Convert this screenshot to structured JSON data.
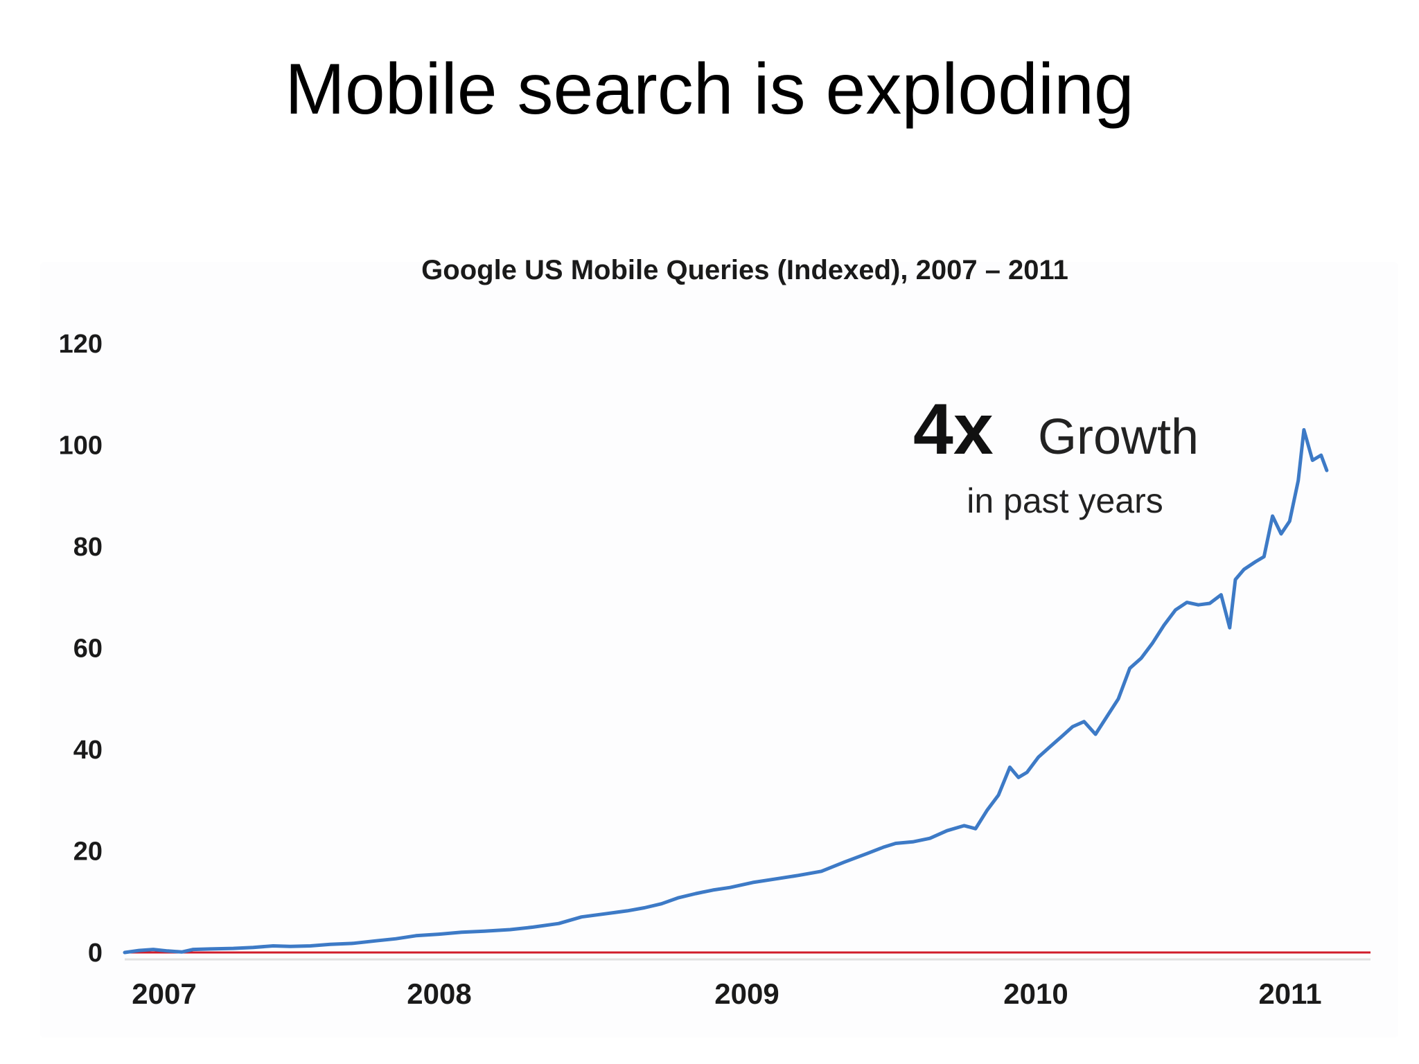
{
  "slide": {
    "title": "Mobile search is exploding"
  },
  "chart_data": {
    "type": "line",
    "title": "Google US Mobile Queries (Indexed), 2007 – 2011",
    "xlabel": "",
    "ylabel": "",
    "ylim": [
      0,
      120
    ],
    "xlim": [
      2006.9,
      2011.2
    ],
    "y_ticks": [
      "0",
      "20",
      "40",
      "60",
      "80",
      "100",
      "120"
    ],
    "x_ticks": [
      {
        "label": "2007",
        "value": 2007.0
      },
      {
        "label": "2008",
        "value": 2008.0
      },
      {
        "label": "2009",
        "value": 2009.0
      },
      {
        "label": "2010",
        "value": 2010.0
      },
      {
        "label": "2011",
        "value": 2011.0
      }
    ],
    "grid": false,
    "baseline_color": "#d01c2a",
    "series": [
      {
        "color": "#3d7ac6",
        "points": [
          [
            2006.9,
            0.0
          ],
          [
            2006.95,
            0.4
          ],
          [
            2007.0,
            0.6
          ],
          [
            2007.05,
            0.3
          ],
          [
            2007.1,
            0.1
          ],
          [
            2007.14,
            0.6
          ],
          [
            2007.2,
            0.7
          ],
          [
            2007.28,
            0.8
          ],
          [
            2007.35,
            1.0
          ],
          [
            2007.42,
            1.3
          ],
          [
            2007.48,
            1.2
          ],
          [
            2007.55,
            1.3
          ],
          [
            2007.62,
            1.6
          ],
          [
            2007.7,
            1.8
          ],
          [
            2007.78,
            2.3
          ],
          [
            2007.85,
            2.7
          ],
          [
            2007.92,
            3.3
          ],
          [
            2008.0,
            3.6
          ],
          [
            2008.08,
            4.0
          ],
          [
            2008.16,
            4.2
          ],
          [
            2008.25,
            4.5
          ],
          [
            2008.33,
            5.0
          ],
          [
            2008.42,
            5.7
          ],
          [
            2008.5,
            7.0
          ],
          [
            2008.58,
            7.6
          ],
          [
            2008.66,
            8.2
          ],
          [
            2008.72,
            8.8
          ],
          [
            2008.78,
            9.6
          ],
          [
            2008.84,
            10.8
          ],
          [
            2008.9,
            11.6
          ],
          [
            2008.96,
            12.3
          ],
          [
            2009.02,
            12.8
          ],
          [
            2009.1,
            13.8
          ],
          [
            2009.18,
            14.5
          ],
          [
            2009.26,
            15.2
          ],
          [
            2009.34,
            16.0
          ],
          [
            2009.42,
            17.8
          ],
          [
            2009.5,
            19.5
          ],
          [
            2009.56,
            20.8
          ],
          [
            2009.6,
            21.5
          ],
          [
            2009.66,
            21.8
          ],
          [
            2009.72,
            22.5
          ],
          [
            2009.78,
            24.0
          ],
          [
            2009.84,
            25.0
          ],
          [
            2009.88,
            24.4
          ],
          [
            2009.92,
            28.0
          ],
          [
            2009.96,
            31.0
          ],
          [
            2010.0,
            36.5
          ],
          [
            2010.03,
            34.5
          ],
          [
            2010.06,
            35.5
          ],
          [
            2010.1,
            38.5
          ],
          [
            2010.14,
            40.5
          ],
          [
            2010.18,
            42.5
          ],
          [
            2010.22,
            44.5
          ],
          [
            2010.26,
            45.5
          ],
          [
            2010.3,
            43.0
          ],
          [
            2010.34,
            46.5
          ],
          [
            2010.38,
            50.0
          ],
          [
            2010.42,
            56.0
          ],
          [
            2010.46,
            58.0
          ],
          [
            2010.5,
            61.0
          ],
          [
            2010.54,
            64.5
          ],
          [
            2010.58,
            67.5
          ],
          [
            2010.62,
            69.0
          ],
          [
            2010.66,
            68.5
          ],
          [
            2010.7,
            68.8
          ],
          [
            2010.74,
            70.5
          ],
          [
            2010.77,
            64.0
          ],
          [
            2010.79,
            73.5
          ],
          [
            2010.82,
            75.5
          ],
          [
            2010.86,
            77.0
          ],
          [
            2010.89,
            78.0
          ],
          [
            2010.92,
            86.0
          ],
          [
            2010.95,
            82.5
          ],
          [
            2010.98,
            85.0
          ],
          [
            2011.01,
            93.0
          ],
          [
            2011.03,
            103.0
          ],
          [
            2011.06,
            97.0
          ],
          [
            2011.09,
            98.0
          ],
          [
            2011.11,
            95.0
          ]
        ]
      }
    ],
    "annotation": {
      "big": "4x",
      "word": "Growth",
      "sub": "in past years"
    }
  }
}
